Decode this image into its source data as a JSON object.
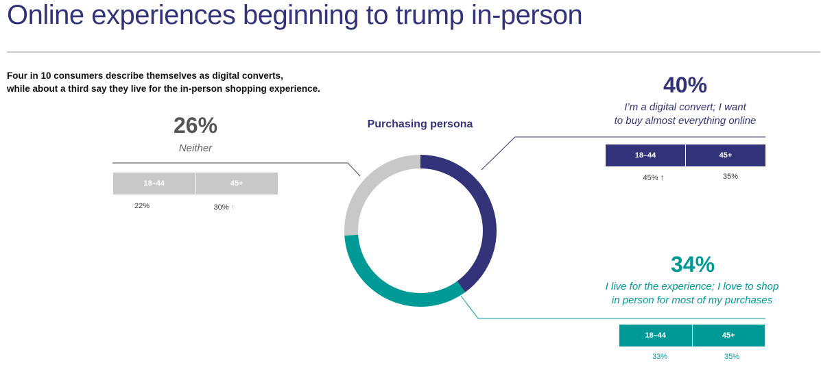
{
  "header": {
    "title": "Online experiences beginning to trump in-person",
    "subtitle_line1": "Four in 10 consumers describe themselves as digital converts,",
    "subtitle_line2": "while about a third say they live for the in-person shopping experience."
  },
  "chart_data": {
    "type": "pie",
    "title": "Purchasing persona",
    "colors": {
      "digital": "#33337a",
      "experience": "#009a96",
      "neither": "#c8c8c8"
    },
    "slices": [
      {
        "label": "I’m a digital convert; I want to buy almost everything online",
        "value": 40
      },
      {
        "label": "I live for the experience; I love to shop in person for most of my purchases",
        "value": 34
      },
      {
        "label": "Neither",
        "value": 26
      }
    ]
  },
  "digital": {
    "pct": "40%",
    "desc_line1": "I’m a digital convert; I want",
    "desc_line2": "to buy almost everything online",
    "age_young": "18–44",
    "age_old": "45+",
    "val_young": "45%",
    "val_young_arrow": "↑",
    "val_old": "35%"
  },
  "experience": {
    "pct": "34%",
    "desc_line1": "I live for the experience; I love to shop",
    "desc_line2": "in person for most of my purchases",
    "age_young": "18–44",
    "age_old": "45+",
    "val_young": "33%",
    "val_old": "35%"
  },
  "neither": {
    "pct": "26%",
    "desc": "Neither",
    "age_young": "18–44",
    "age_old": "45+",
    "val_young": "22%",
    "val_old": "30%",
    "val_old_arrow": "↑"
  }
}
